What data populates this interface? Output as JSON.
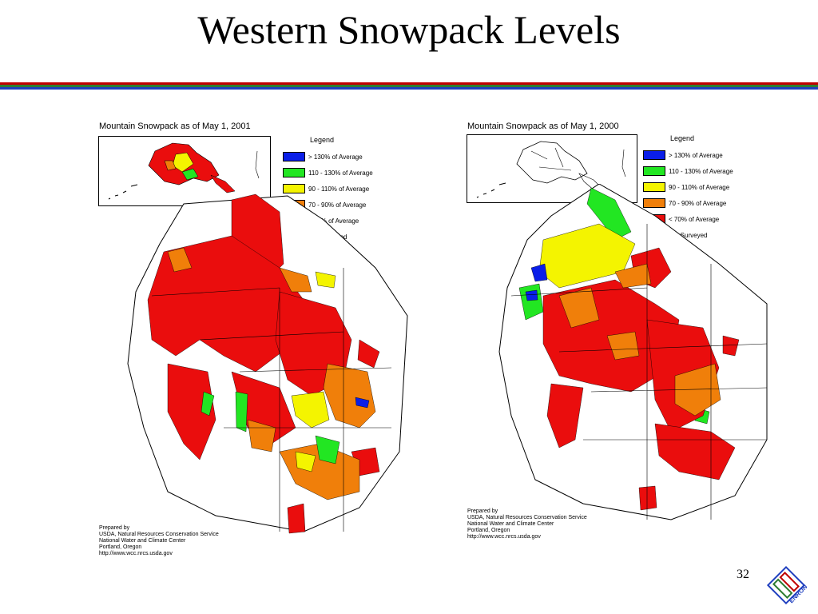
{
  "slide": {
    "title": "Western Snowpack Levels",
    "page_number": "32",
    "stripe_colors": [
      "#c00000",
      "#2e7d32",
      "#1f3fbf"
    ]
  },
  "logo": {
    "text": "ENRON",
    "icon": "enron-logo-icon",
    "colors": [
      "#1f3fbf",
      "#c00000",
      "#2e7d32"
    ]
  },
  "maps": [
    {
      "title": "Mountain Snowpack as of May 1, 2001",
      "legend_title": "Legend",
      "legend": [
        {
          "label": "> 130% of Average",
          "color": "#0a1ee8"
        },
        {
          "label": "110 - 130% of Average",
          "color": "#22e622"
        },
        {
          "label": "90 - 110% of Average",
          "color": "#f4f400"
        },
        {
          "label": "70 - 90% of Average",
          "color": "#f07f0a"
        },
        {
          "label": "< 70% of Average",
          "color": "#ea0d0d"
        },
        {
          "label": "Not Surveyed",
          "color": "#ffffff"
        }
      ],
      "credits": [
        "Prepared by",
        "USDA, Natural Resources Conservation Service",
        "National Water and Climate Center",
        "Portland, Oregon",
        "http://www.wcc.nrcs.usda.gov"
      ]
    },
    {
      "title": "Mountain Snowpack as of May 1, 2000",
      "legend_title": "Legend",
      "legend": [
        {
          "label": "> 130% of Average",
          "color": "#0a1ee8"
        },
        {
          "label": "110 - 130% of Average",
          "color": "#22e622"
        },
        {
          "label": "90 - 110% of Average",
          "color": "#f4f400"
        },
        {
          "label": "70 - 90% of Average",
          "color": "#f07f0a"
        },
        {
          "label": "< 70% of Average",
          "color": "#ea0d0d"
        },
        {
          "label": "Not Surveyed",
          "color": "#ffffff"
        }
      ],
      "credits": [
        "Prepared by",
        "USDA, Natural Resources Conservation Service",
        "National Water and Climate Center",
        "Portland, Oregon",
        "http://www.wcc.nrcs.usda.gov"
      ]
    }
  ]
}
